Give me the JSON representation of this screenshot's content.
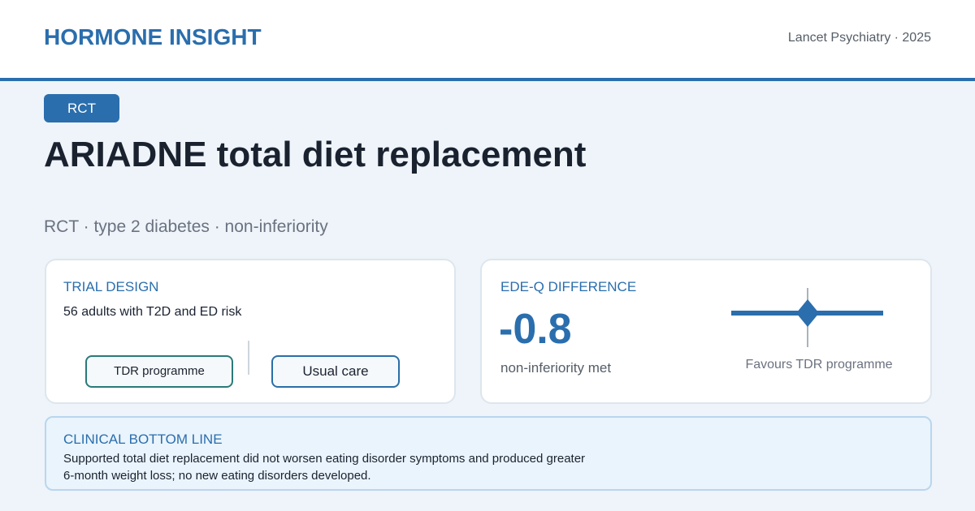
{
  "header": {
    "brand": "HORMONE INSIGHT",
    "source": "Lancet Psychiatry · 2025"
  },
  "badge": "RCT",
  "title": "ARIADNE total diet replacement",
  "subtitle": "RCT · type 2 diabetes · non-inferiority",
  "design": {
    "label": "TRIAL DESIGN",
    "text": "56 adults with T2D and ED risk",
    "arms": [
      "TDR programme",
      "Usual care"
    ]
  },
  "result": {
    "label": "EDE-Q DIFFERENCE",
    "value": "-0.8",
    "note": "non-inferiority met",
    "caption": "Favours TDR programme"
  },
  "bottom_line": {
    "label": "CLINICAL BOTTOM LINE",
    "lines": [
      "Supported total diet replacement did not worsen eating disorder symptoms and produced greater",
      "6-month weight loss; no new eating disorders developed."
    ]
  }
}
